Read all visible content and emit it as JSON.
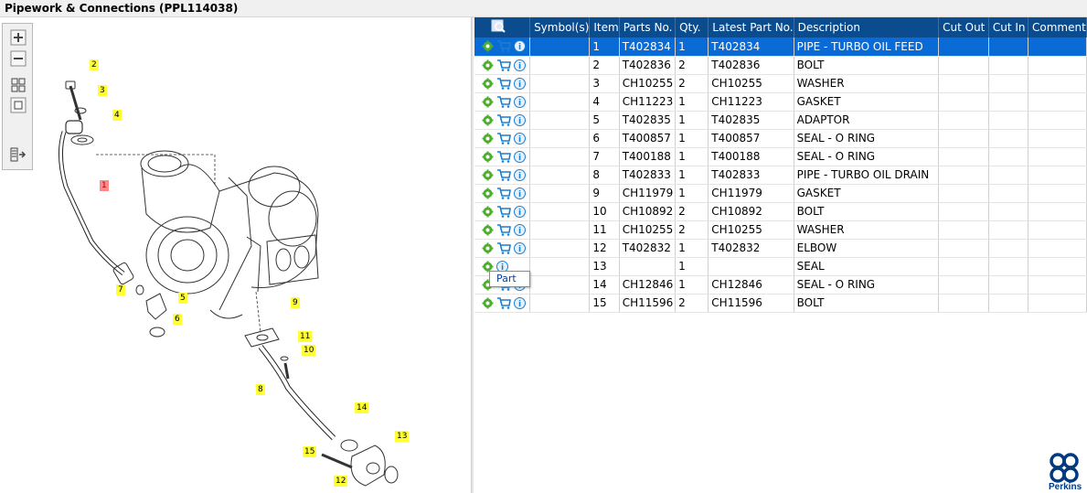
{
  "window": {
    "title": "Pipework & Connections (PPL114038)"
  },
  "toolbar": {
    "buttons": [
      {
        "name": "zoom-in-icon"
      },
      {
        "name": "zoom-out-icon"
      },
      {
        "name": "fit-all-icon"
      },
      {
        "name": "actual-size-icon"
      },
      {
        "name": "panel-toggle-icon"
      }
    ]
  },
  "diagram": {
    "callouts": [
      {
        "label": "2"
      },
      {
        "label": "3"
      },
      {
        "label": "4"
      },
      {
        "label": "1"
      },
      {
        "label": "7"
      },
      {
        "label": "5"
      },
      {
        "label": "6"
      },
      {
        "label": "9"
      },
      {
        "label": "11"
      },
      {
        "label": "10"
      },
      {
        "label": "8"
      },
      {
        "label": "14"
      },
      {
        "label": "13"
      },
      {
        "label": "15"
      },
      {
        "label": "12"
      }
    ]
  },
  "grid": {
    "columns": [
      "",
      "Symbol(s)",
      "Item",
      "Parts No.",
      "Qty.",
      "Latest Part No.",
      "Description",
      "Cut Out",
      "Cut In",
      "Comment"
    ],
    "rows": [
      {
        "item": "1",
        "part": "T402834",
        "qty": "1",
        "latest": "T402834",
        "desc": "PIPE - TURBO OIL FEED"
      },
      {
        "item": "2",
        "part": "T402836",
        "qty": "2",
        "latest": "T402836",
        "desc": "BOLT"
      },
      {
        "item": "3",
        "part": "CH10255",
        "qty": "2",
        "latest": "CH10255",
        "desc": "WASHER"
      },
      {
        "item": "4",
        "part": "CH11223",
        "qty": "1",
        "latest": "CH11223",
        "desc": "GASKET"
      },
      {
        "item": "5",
        "part": "T402835",
        "qty": "1",
        "latest": "T402835",
        "desc": "ADAPTOR"
      },
      {
        "item": "6",
        "part": "T400857",
        "qty": "1",
        "latest": "T400857",
        "desc": "SEAL - O RING"
      },
      {
        "item": "7",
        "part": "T400188",
        "qty": "1",
        "latest": "T400188",
        "desc": "SEAL - O RING"
      },
      {
        "item": "8",
        "part": "T402833",
        "qty": "1",
        "latest": "T402833",
        "desc": "PIPE - TURBO OIL DRAIN"
      },
      {
        "item": "9",
        "part": "CH11979",
        "qty": "1",
        "latest": "CH11979",
        "desc": "GASKET"
      },
      {
        "item": "10",
        "part": "CH10892",
        "qty": "2",
        "latest": "CH10892",
        "desc": "BOLT"
      },
      {
        "item": "11",
        "part": "CH10255",
        "qty": "2",
        "latest": "CH10255",
        "desc": "WASHER"
      },
      {
        "item": "12",
        "part": "T402832",
        "qty": "1",
        "latest": "T402832",
        "desc": "ELBOW"
      },
      {
        "item": "13",
        "part": "",
        "qty": "1",
        "latest": "",
        "desc": "SEAL"
      },
      {
        "item": "14",
        "part": "CH12846",
        "qty": "1",
        "latest": "CH12846",
        "desc": "SEAL - O RING"
      },
      {
        "item": "15",
        "part": "CH11596",
        "qty": "2",
        "latest": "CH11596",
        "desc": "BOLT"
      }
    ]
  },
  "tooltip": {
    "text": "Part"
  },
  "brand": {
    "name": "Perkins",
    "color": "#003b80"
  },
  "colors": {
    "header": "#0b4c8f",
    "selected_row": "#0a6bd6",
    "callout": "#ffff33"
  }
}
